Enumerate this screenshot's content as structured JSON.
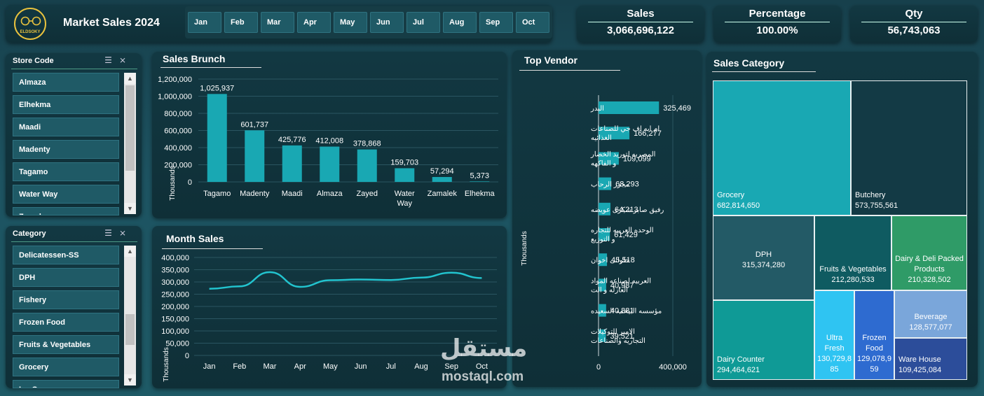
{
  "header": {
    "logo_text": "ELDSOKY",
    "title": "Market Sales 2024",
    "months": [
      "Jan",
      "Feb",
      "Mar",
      "Apr",
      "May",
      "Jun",
      "Jul",
      "Aug",
      "Sep",
      "Oct"
    ]
  },
  "kpis": [
    {
      "label": "Sales",
      "value": "3,066,696,122"
    },
    {
      "label": "Percentage",
      "value": "100.00%"
    },
    {
      "label": "Qty",
      "value": "56,743,063"
    }
  ],
  "store_slicer": {
    "title": "Store Code",
    "items": [
      "Almaza",
      "Elhekma",
      "Maadi",
      "Madenty",
      "Tagamo",
      "Water Way",
      "Zayed"
    ]
  },
  "category_slicer": {
    "title": "Category",
    "items": [
      "Delicatessen-SS",
      "DPH",
      "Fishery",
      "Frozen Food",
      "Fruits & Vegetables",
      "Grocery",
      "Ice Cream"
    ]
  },
  "chart_data": [
    {
      "type": "bar",
      "title": "Sales Brunch",
      "ylabel": "Thousands",
      "categories": [
        "Tagamo",
        "Madenty",
        "Maadi",
        "Almaza",
        "Zayed",
        "Water Way",
        "Zamalek",
        "Elhekma"
      ],
      "values": [
        1025937,
        601737,
        425776,
        412008,
        378868,
        159703,
        57294,
        5373
      ],
      "value_labels": [
        "1,025,937",
        "601,737",
        "425,776",
        "412,008",
        "378,868",
        "159,703",
        "57,294",
        "5,373"
      ],
      "ylim": [
        0,
        1200000
      ],
      "yticks": [
        "0",
        "200,000",
        "400,000",
        "600,000",
        "800,000",
        "1,000,000",
        "1,200,000"
      ],
      "color": "#19a8b3"
    },
    {
      "type": "line",
      "title": "Month Sales",
      "ylabel": "Thousands",
      "categories": [
        "Jan",
        "Feb",
        "Mar",
        "Apr",
        "May",
        "Jun",
        "Jul",
        "Aug",
        "Sep",
        "Oct"
      ],
      "values": [
        272000,
        282000,
        340000,
        280000,
        307000,
        310000,
        308000,
        318000,
        338000,
        316000
      ],
      "ylim": [
        0,
        400000
      ],
      "yticks": [
        "0",
        "50,000",
        "100,000",
        "150,000",
        "200,000",
        "250,000",
        "300,000",
        "350,000",
        "400,000"
      ],
      "color": "#22c4cf"
    },
    {
      "type": "bar",
      "orientation": "horizontal",
      "title": "Top Vendor",
      "ylabel": "Thousands",
      "categories": [
        "البدر",
        "ام ايه اف جي للصناعات الغذائيه",
        "المصريه لتوريد الخضار و الفاكهه",
        "مجزر الرحاب",
        "رفيق صابر شكرى عويضه",
        "الوحده العربيه للتجاره و التوزيع",
        "حلوانى اخوان",
        "العربيه لصناعه المواد العازله و الت",
        "مؤسسه البيحمه السعيده",
        "الامير للتوكيلات التجاريه والصناعات"
      ],
      "values": [
        325469,
        166277,
        109099,
        68293,
        64213,
        61429,
        45518,
        40987,
        40881,
        39521
      ],
      "value_labels": [
        "325,469",
        "166,277",
        "109,099",
        "68,293",
        "64,213",
        "61,429",
        "45,518",
        "40,987",
        "40,881",
        "39,521"
      ],
      "xlim": [
        0,
        400000
      ],
      "xticks": [
        "0",
        "400,000"
      ],
      "color": "#19a8b3"
    },
    {
      "type": "treemap",
      "title": "Sales Category",
      "items": [
        {
          "name": "Grocery",
          "value": "682,814,650",
          "color": "#19a8b3"
        },
        {
          "name": "Butchery",
          "value": "573,755,561",
          "color": "#133a45"
        },
        {
          "name": "DPH",
          "value": "315,374,280",
          "color": "#235a66"
        },
        {
          "name": "Fruits & Vegetables",
          "value": "212,280,533",
          "color": "#0f5b61"
        },
        {
          "name": "Dairy & Deli  Packed Products",
          "value": "210,328,502",
          "color": "#2f9b67"
        },
        {
          "name": "Dairy Counter",
          "value": "294,464,621",
          "color": "#0f9a96"
        },
        {
          "name": "Ultra Fresh",
          "value": "130,729,885",
          "color": "#2fc4f2"
        },
        {
          "name": "Frozen Food",
          "value": "129,078,959",
          "color": "#2e6bd0"
        },
        {
          "name": "Beverage",
          "value": "128,577,077",
          "color": "#7aa6da"
        },
        {
          "name": "Ware House",
          "value": "109,425,084",
          "color": "#2c4d9a"
        }
      ]
    }
  ],
  "watermark": {
    "arabic": "مستقل",
    "latin": "mostaql.com"
  }
}
